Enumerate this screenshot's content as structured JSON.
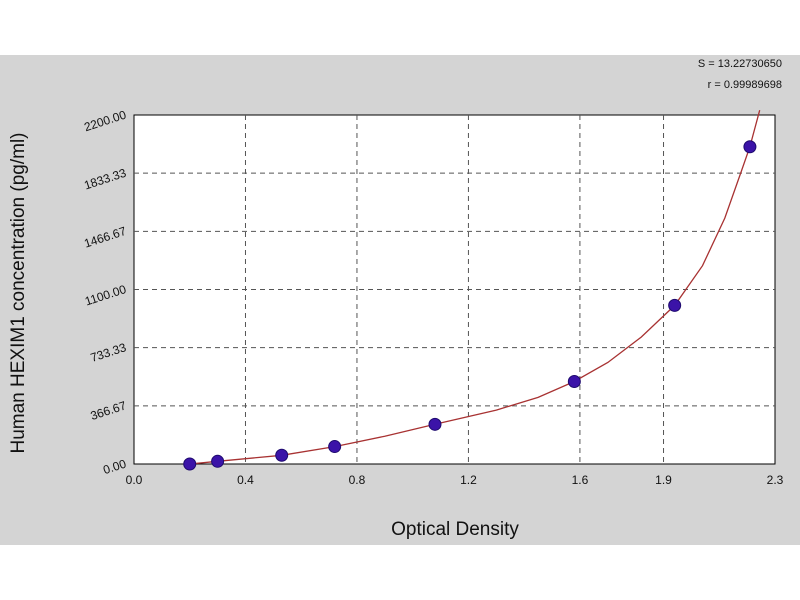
{
  "chart_data": {
    "type": "scatter",
    "title": "",
    "xlabel": "Optical Density",
    "ylabel": "Human HEXIM1 concentration (pg/ml)",
    "xlim": [
      0.0,
      2.3
    ],
    "ylim": [
      0.0,
      2200.0
    ],
    "x_ticks": [
      "0.0",
      "0.4",
      "0.8",
      "1.2",
      "1.6",
      "1.9",
      "2.3"
    ],
    "x_tick_values": [
      0.0,
      0.4,
      0.8,
      1.2,
      1.6,
      1.9,
      2.3
    ],
    "y_ticks": [
      "0.00",
      "366.67",
      "733.33",
      "1100.00",
      "1466.67",
      "1833.33",
      "2200.00"
    ],
    "y_tick_values": [
      0.0,
      366.67,
      733.33,
      1100.0,
      1466.67,
      1833.33,
      2200.0
    ],
    "grid": true,
    "series": [
      {
        "kind": "points",
        "color": "#3b13a8",
        "points": [
          {
            "x": 0.2,
            "y": 0
          },
          {
            "x": 0.3,
            "y": 17
          },
          {
            "x": 0.53,
            "y": 55
          },
          {
            "x": 0.72,
            "y": 110
          },
          {
            "x": 1.08,
            "y": 250
          },
          {
            "x": 1.58,
            "y": 520
          },
          {
            "x": 1.94,
            "y": 1000
          },
          {
            "x": 2.21,
            "y": 2000
          }
        ]
      },
      {
        "kind": "fit",
        "color": "#a83232",
        "points": [
          {
            "x": 0.2,
            "y": 0
          },
          {
            "x": 0.3,
            "y": 17
          },
          {
            "x": 0.53,
            "y": 55
          },
          {
            "x": 0.72,
            "y": 110
          },
          {
            "x": 0.9,
            "y": 175
          },
          {
            "x": 1.08,
            "y": 250
          },
          {
            "x": 1.3,
            "y": 340
          },
          {
            "x": 1.45,
            "y": 420
          },
          {
            "x": 1.58,
            "y": 520
          },
          {
            "x": 1.7,
            "y": 640
          },
          {
            "x": 1.82,
            "y": 800
          },
          {
            "x": 1.94,
            "y": 1000
          },
          {
            "x": 2.04,
            "y": 1250
          },
          {
            "x": 2.12,
            "y": 1550
          },
          {
            "x": 2.18,
            "y": 1850
          },
          {
            "x": 2.21,
            "y": 2000
          },
          {
            "x": 2.245,
            "y": 2230
          }
        ]
      }
    ],
    "annotations": [
      "S = 13.22730650",
      "r = 0.99989698"
    ]
  }
}
